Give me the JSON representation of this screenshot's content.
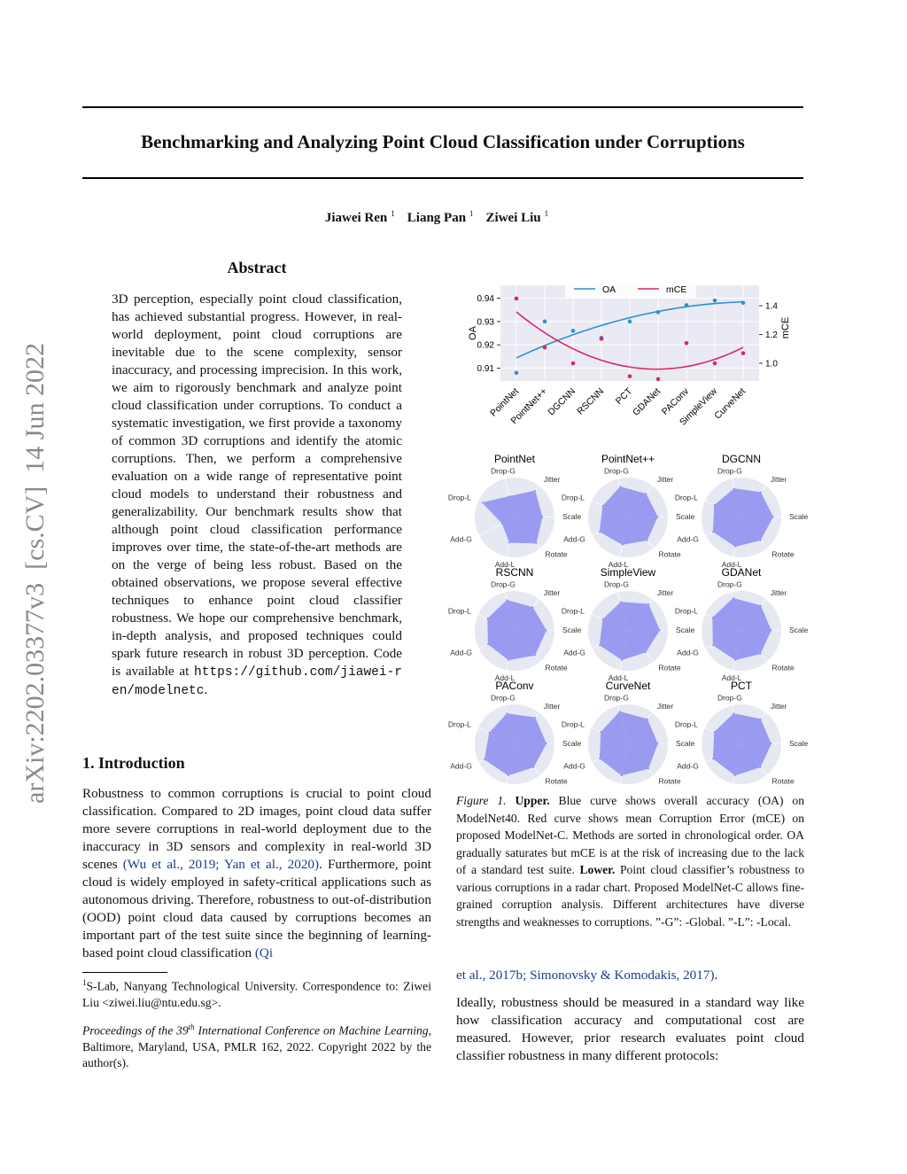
{
  "arxiv_id": "arXiv:2202.03377v3  [cs.CV]  14 Jun 2022",
  "title": "Benchmarking and Analyzing Point Cloud Classification under Corruptions",
  "authors": [
    {
      "name": "Jiawei Ren",
      "affiliation": "1"
    },
    {
      "name": "Liang Pan",
      "affiliation": "1"
    },
    {
      "name": "Ziwei Liu",
      "affiliation": "1"
    }
  ],
  "abstract": {
    "heading": "Abstract",
    "text": "3D perception, especially point cloud classification, has achieved substantial progress. However, in real-world deployment, point cloud corruptions are inevitable due to the scene complexity, sensor inaccuracy, and processing imprecision. In this work, we aim to rigorously benchmark and analyze point cloud classification under corruptions. To conduct a systematic investigation, we first provide a taxonomy of common 3D corruptions and identify the atomic corruptions. Then, we perform a comprehensive evaluation on a wide range of representative point cloud models to understand their robustness and generalizability. Our benchmark results show that although point cloud classification performance improves over time, the state-of-the-art methods are on the verge of being less robust. Based on the obtained observations, we propose several effective techniques to enhance point cloud classifier robustness. We hope our comprehensive benchmark, in-depth analysis, and proposed techniques could spark future research in robust 3D perception. Code is available at ",
    "url": "https://github.com/jiawei-ren/modelnetc",
    "end": "."
  },
  "introduction": {
    "heading": "1. Introduction",
    "text1": "Robustness to common corruptions is crucial to point cloud classification. Compared to 2D images, point cloud data suffer more severe corruptions in real-world deployment due to the inaccuracy in 3D sensors and complexity in real-world 3D scenes ",
    "cite1": "(Wu et al., 2019; Yan et al., 2020)",
    "text2": ". Furthermore, point cloud is widely employed in safety-critical applications such as autonomous driving. Therefore, robustness to out-of-distribution (OOD) point cloud data caused by corruptions becomes an important part of the test suite since the beginning of learning-based point cloud classification ",
    "cite2a": "(Qi",
    "cite2b": "et al., 2017b; Simonovsky & Komodakis, 2017)",
    "text3": ".",
    "paragraph2": "Ideally, robustness should be measured in a standard way like how classification accuracy and computational cost are measured. However, prior research evaluates point cloud classifier robustness in many different protocols:"
  },
  "footnote": {
    "mark": "1",
    "text": "S-Lab, Nanyang Technological University. Correspondence to: Ziwei Liu <ziwei.liu@ntu.edu.sg>."
  },
  "proceedings": {
    "italic1": "Proceedings of the ",
    "number": "39",
    "suffix": "th",
    "italic2": " International Conference on Machine Learning",
    "rest": ", Baltimore, Maryland, USA, PMLR 162, 2022. Copyright 2022 by the author(s)."
  },
  "caption": {
    "label": "Figure 1.",
    "upper": "Upper.",
    "upper_text": " Blue curve shows overall accuracy (OA) on ModelNet40. Red curve shows mean Corruption Error (mCE) on proposed ModelNet-C. Methods are sorted in chronological order. OA gradually saturates but mCE is at the risk of increasing due to the lack of a standard test suite. ",
    "lower": "Lower.",
    "lower_text": " Point cloud classifier’s robustness to various corruptions in a radar chart. Proposed ModelNet-C allows fine-grained corruption analysis. Different architectures have diverse strengths and weaknesses to corruptions. ”-G”: -Global. ”-L”: -Local."
  },
  "chart_data": [
    {
      "type": "line",
      "ylabel": "OA",
      "y2label": "mCE",
      "categories": [
        "PointNet",
        "PointNet++",
        "DGCNN",
        "RSCNN",
        "PCT",
        "GDANet",
        "PAConv",
        "SimpleView",
        "CurveNet"
      ],
      "series": [
        {
          "name": "OA",
          "color": "#2f8fd6",
          "values": [
            0.908,
            0.93,
            0.926,
            0.923,
            0.93,
            0.934,
            0.937,
            0.939,
            0.938
          ]
        },
        {
          "name": "mCE",
          "color": "#d6276a",
          "axis": "y2",
          "values": [
            1.45,
            1.11,
            1.0,
            1.17,
            0.91,
            0.89,
            1.14,
            1.0,
            1.07
          ]
        }
      ],
      "ylim": [
        0.9045,
        0.9455
      ],
      "yticks": [
        0.91,
        0.92,
        0.93,
        0.94
      ],
      "y2lim": [
        0.877,
        1.542
      ],
      "y2ticks": [
        {
          "value": 1.0,
          "label": "1.0"
        },
        1.2,
        1.4
      ],
      "grid": true,
      "legend": "top"
    },
    {
      "type": "radar",
      "title": "PointNet",
      "categories": [
        "Drop-G",
        "Jitter",
        "Scale",
        "Rotate",
        "Add-L",
        "Add-G",
        "Drop-L"
      ],
      "values": [
        0.55,
        0.85,
        0.7,
        0.85,
        0.65,
        0.35,
        0.9
      ],
      "rlim": [
        0,
        1
      ],
      "color": "#8080f0"
    },
    {
      "type": "radar",
      "title": "PointNet++",
      "categories": [
        "Drop-G",
        "Jitter",
        "Scale",
        "Rotate",
        "Add-L",
        "Add-G",
        "Drop-L"
      ],
      "values": [
        0.8,
        0.75,
        0.75,
        0.75,
        0.7,
        0.8,
        0.7
      ],
      "rlim": [
        0,
        1
      ],
      "color": "#8080f0"
    },
    {
      "type": "radar",
      "title": "DGCNN",
      "categories": [
        "Drop-G",
        "Jitter",
        "Scale",
        "Rotate",
        "Add-L",
        "Add-G",
        "Drop-L"
      ],
      "values": [
        0.75,
        0.8,
        0.8,
        0.75,
        0.75,
        0.8,
        0.75
      ],
      "rlim": [
        0,
        1
      ],
      "color": "#8080f0"
    },
    {
      "type": "radar",
      "title": "RSCNN",
      "categories": [
        "Drop-G",
        "Jitter",
        "Scale",
        "Rotate",
        "Add-L",
        "Add-G",
        "Drop-L"
      ],
      "values": [
        0.8,
        0.75,
        0.8,
        0.8,
        0.75,
        0.75,
        0.75
      ],
      "rlim": [
        0,
        1
      ],
      "color": "#8080f0"
    },
    {
      "type": "radar",
      "title": "SimpleView",
      "categories": [
        "Drop-G",
        "Jitter",
        "Scale",
        "Rotate",
        "Add-L",
        "Add-G",
        "Drop-L"
      ],
      "values": [
        0.75,
        0.85,
        0.8,
        0.7,
        0.75,
        0.8,
        0.7
      ],
      "rlim": [
        0,
        1
      ],
      "color": "#8080f0"
    },
    {
      "type": "radar",
      "title": "GDANet",
      "categories": [
        "Drop-G",
        "Jitter",
        "Scale",
        "Rotate",
        "Add-L",
        "Add-G",
        "Drop-L"
      ],
      "values": [
        0.85,
        0.8,
        0.75,
        0.75,
        0.75,
        0.8,
        0.8
      ],
      "rlim": [
        0,
        1
      ],
      "color": "#8080f0"
    },
    {
      "type": "radar",
      "title": "PAConv",
      "categories": [
        "Drop-G",
        "Jitter",
        "Scale",
        "Rotate",
        "Add-L",
        "Add-G",
        "Drop-L"
      ],
      "values": [
        0.8,
        0.85,
        0.8,
        0.75,
        0.8,
        0.85,
        0.7
      ],
      "rlim": [
        0,
        1
      ],
      "color": "#8080f0"
    },
    {
      "type": "radar",
      "title": "CurveNet",
      "categories": [
        "Drop-G",
        "Jitter",
        "Scale",
        "Rotate",
        "Add-L",
        "Add-G",
        "Drop-L"
      ],
      "values": [
        0.85,
        0.8,
        0.75,
        0.8,
        0.8,
        0.8,
        0.75
      ],
      "rlim": [
        0,
        1
      ],
      "color": "#8080f0"
    },
    {
      "type": "radar",
      "title": "PCT",
      "categories": [
        "Drop-G",
        "Jitter",
        "Scale",
        "Rotate",
        "Add-L",
        "Add-G",
        "Drop-L"
      ],
      "values": [
        0.8,
        0.8,
        0.75,
        0.75,
        0.8,
        0.8,
        0.75
      ],
      "rlim": [
        0,
        1
      ],
      "color": "#8080f0"
    }
  ]
}
